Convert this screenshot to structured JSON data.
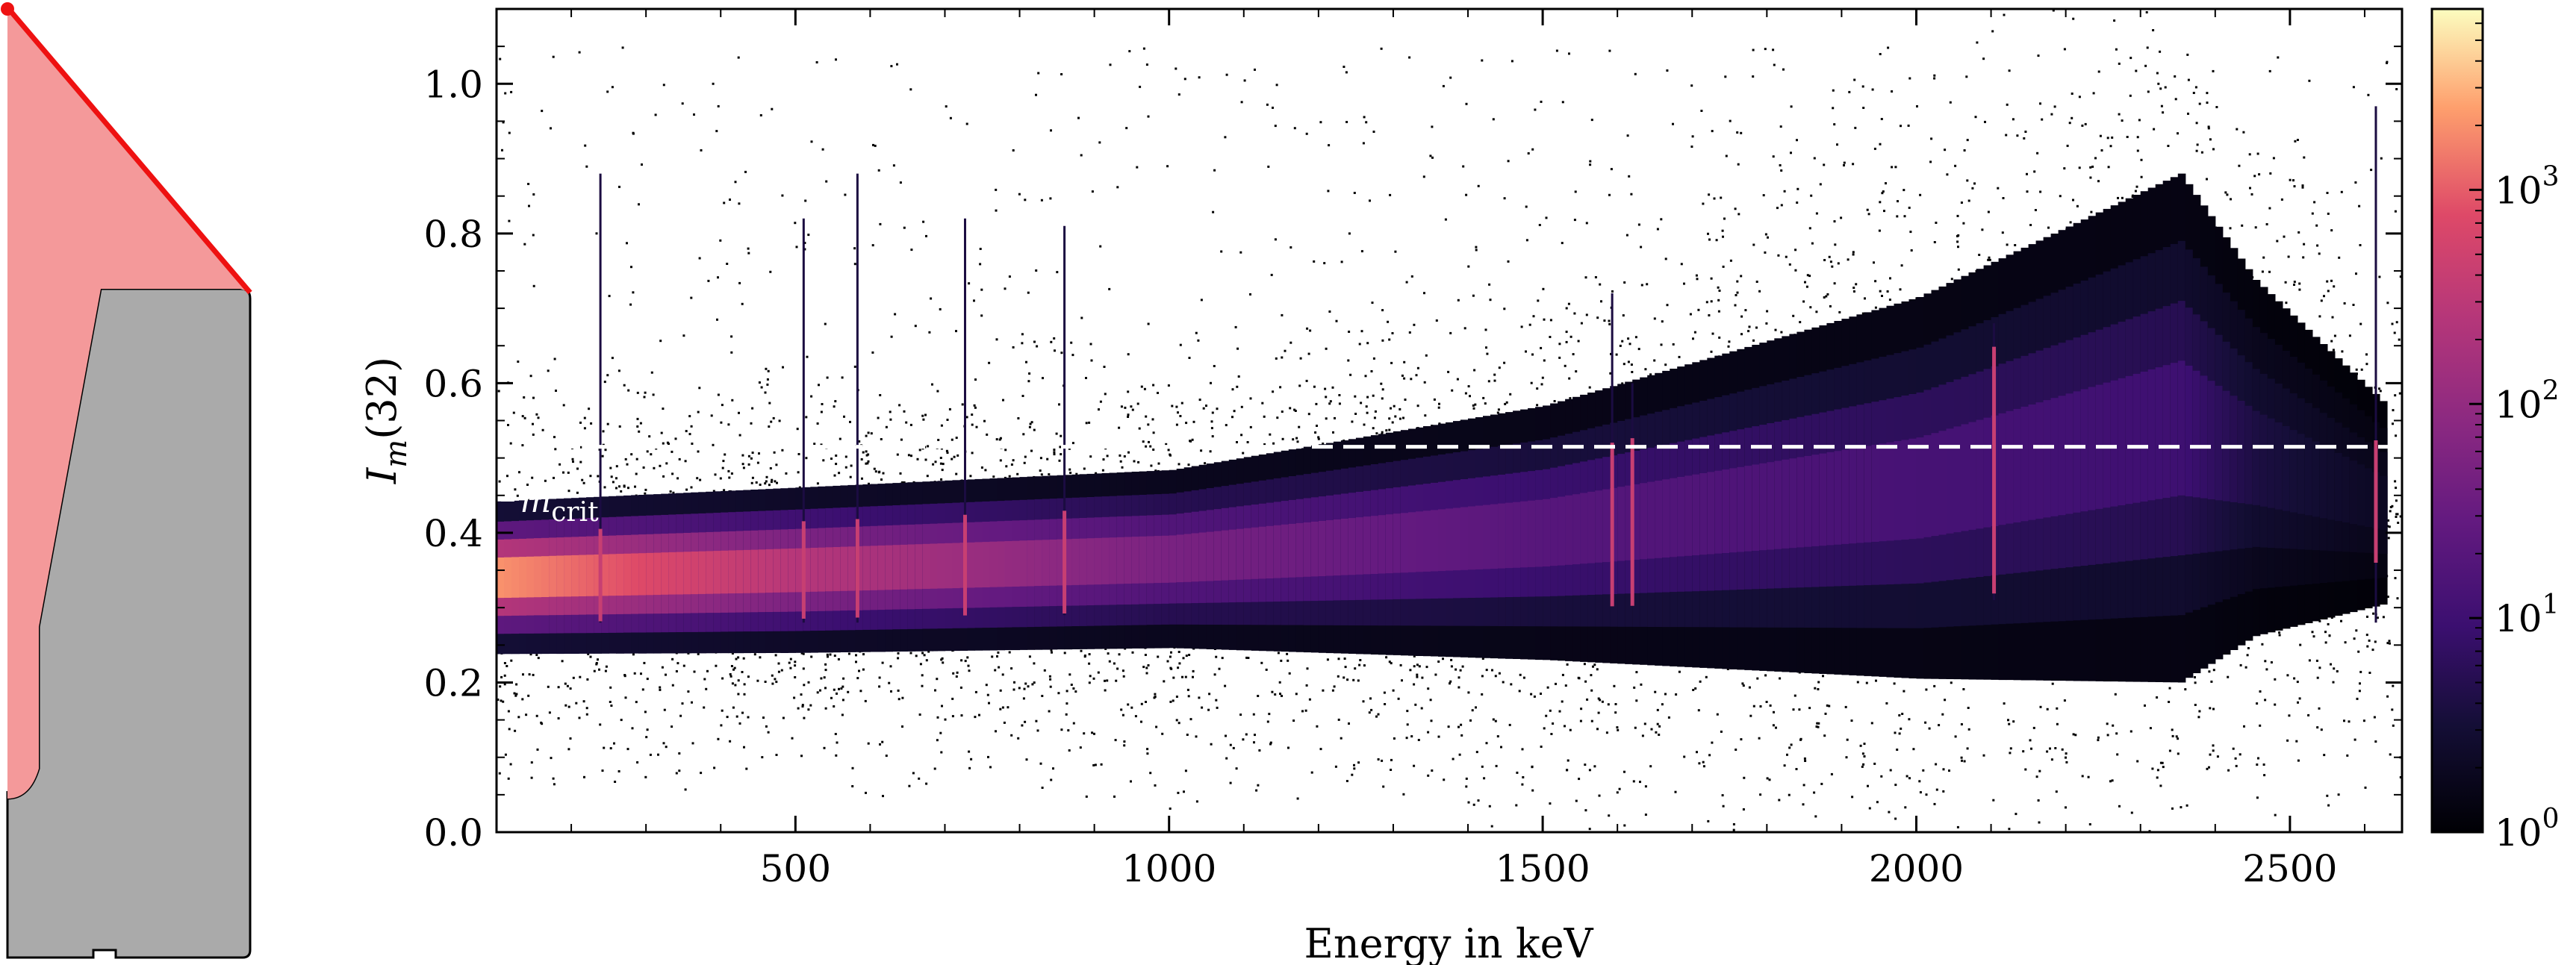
{
  "colors": {
    "detector_body": "#aaaaaa",
    "active_region": "#f4999a",
    "active_edge": "#ee1111",
    "threshold_line": "#ffffff",
    "background_points": "#000000"
  },
  "chart_data": {
    "type": "heatmap",
    "xlabel": "Energy in keV",
    "ylabel": "I_m(32)",
    "ylabel_main": "I",
    "ylabel_sub": "m",
    "ylabel_paren": "(32)",
    "xlim": [
      100,
      2650
    ],
    "ylim": [
      0.0,
      1.1
    ],
    "xticks": [
      500,
      1000,
      1500,
      2000,
      2500
    ],
    "xtick_labels": [
      "500",
      "1000",
      "1500",
      "2000",
      "2500"
    ],
    "yticks": [
      0.0,
      0.2,
      0.4,
      0.6,
      0.8,
      1.0
    ],
    "ytick_labels": [
      "0.0",
      "0.2",
      "0.4",
      "0.6",
      "0.8",
      "1.0"
    ],
    "grid": false,
    "colormap": "magma",
    "colorbar": {
      "scale": "log",
      "range": [
        1,
        7000
      ],
      "ticks": [
        1,
        10,
        100,
        1000
      ],
      "tick_base": [
        "10",
        "10",
        "10",
        "10"
      ],
      "tick_exp": [
        "0",
        "1",
        "2",
        "3"
      ]
    },
    "band": {
      "x": [
        100,
        500,
        1000,
        1500,
        2000,
        2350,
        2450,
        2620
      ],
      "center": [
        0.34,
        0.35,
        0.365,
        0.4,
        0.46,
        0.54,
        0.5,
        0.44
      ],
      "halfwidth": [
        0.06,
        0.065,
        0.07,
        0.1,
        0.15,
        0.2,
        0.14,
        0.08
      ],
      "log10_peak_density": [
        3.3,
        2.4,
        1.7,
        1.3,
        1.1,
        1.0,
        0.6,
        0.3
      ]
    },
    "lines": [
      {
        "energy": 239,
        "im_low": 0.28,
        "im_high": 0.88
      },
      {
        "energy": 511,
        "im_low": 0.28,
        "im_high": 0.82
      },
      {
        "energy": 583,
        "im_low": 0.28,
        "im_high": 0.88
      },
      {
        "energy": 727,
        "im_low": 0.29,
        "im_high": 0.82
      },
      {
        "energy": 860,
        "im_low": 0.29,
        "im_high": 0.81
      },
      {
        "energy": 1593,
        "im_low": 0.32,
        "im_high": 0.72
      },
      {
        "energy": 1620,
        "im_low": 0.32,
        "im_high": 0.6
      },
      {
        "energy": 2104,
        "im_low": 0.31,
        "im_high": 0.68
      },
      {
        "energy": 2615,
        "im_low": 0.28,
        "im_high": 0.97
      }
    ],
    "threshold": {
      "value": 0.515,
      "label_main": "I",
      "label_sub": "m",
      "label_subsub": "crit"
    }
  }
}
